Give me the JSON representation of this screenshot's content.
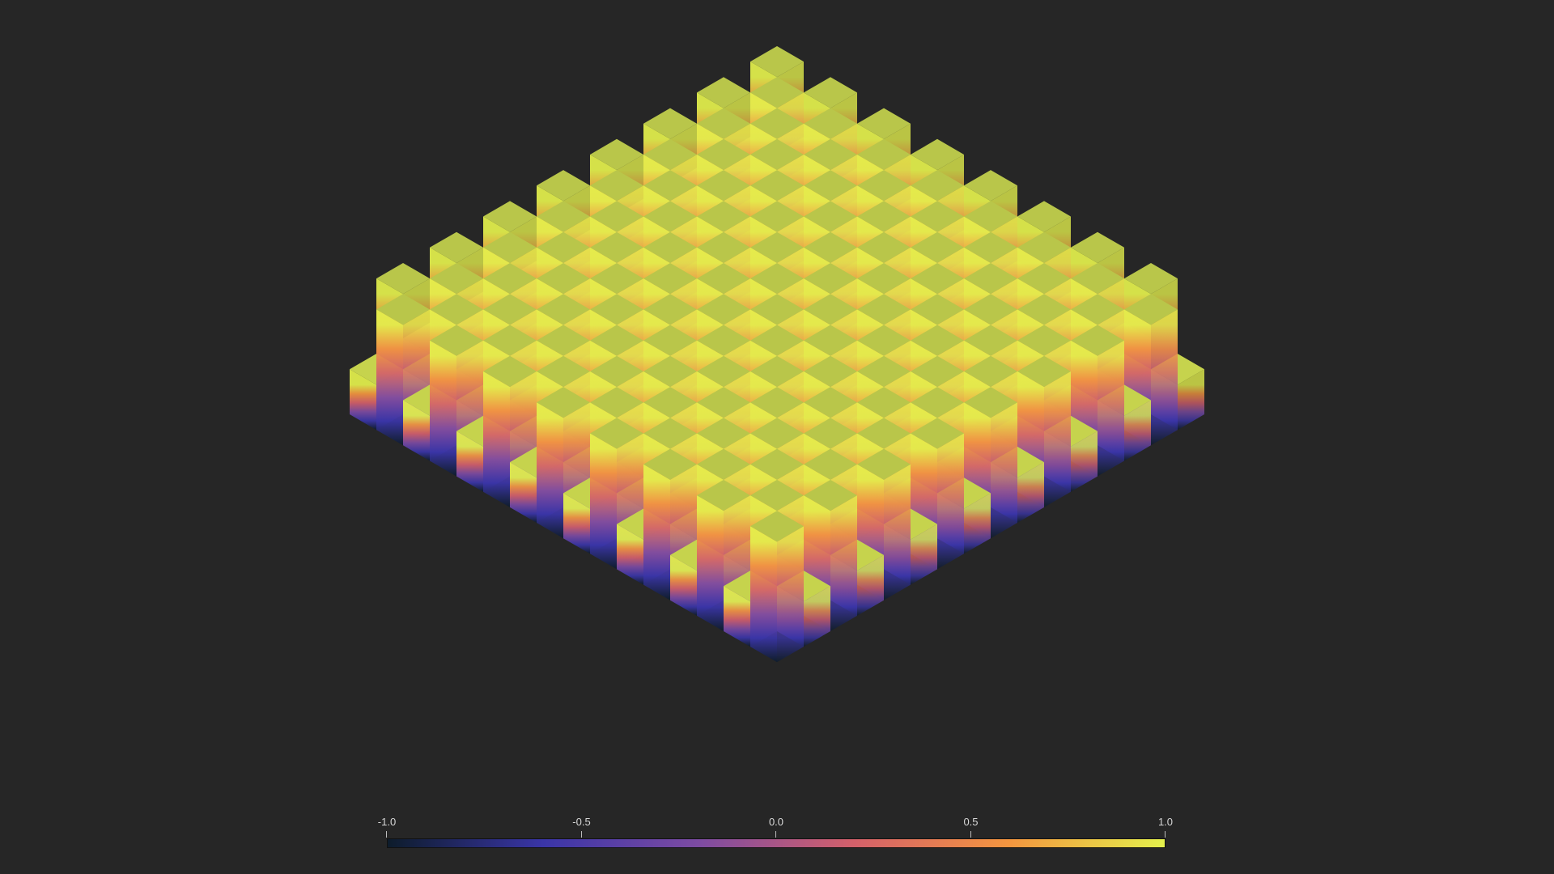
{
  "colormap": [
    "#0d1c2b",
    "#3a35a8",
    "#7d4ba3",
    "#d4606a",
    "#f4963f",
    "#e4f14c"
  ],
  "background": "#262626",
  "grid": {
    "n": 16,
    "top_height": 1.0,
    "base_height": 0.0
  },
  "colorbar": {
    "min": -1.0,
    "max": 1.0,
    "ticks": [
      "-1.0",
      "-0.5",
      "0.0",
      "0.5",
      "1.0"
    ]
  }
}
